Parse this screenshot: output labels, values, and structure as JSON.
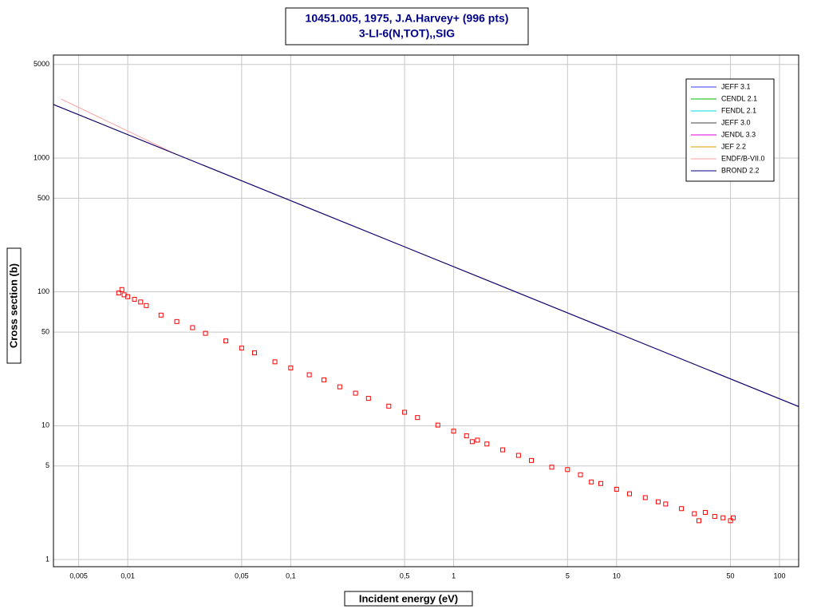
{
  "chart_data": {
    "type": "line",
    "title": "10451.005, 1975, J.A.Harvey+ (996 pts)",
    "subtitle": "3-LI-6(N,TOT),,SIG",
    "x_label": "Incident energy (eV)",
    "y_label": "Cross section (b)",
    "log_x": true,
    "log_y": true,
    "grid": true,
    "xlim": [
      0.0035,
      131
    ],
    "ylim": [
      0.884,
      5875
    ],
    "xticks": [
      {
        "value": 0.005,
        "label": "0,005"
      },
      {
        "value": 0.01,
        "label": "0,01"
      },
      {
        "value": 0.05,
        "label": "0,05"
      },
      {
        "value": 0.1,
        "label": "0,1"
      },
      {
        "value": 0.5,
        "label": "0,5"
      },
      1,
      5,
      10,
      50,
      100
    ],
    "yticks": [
      1,
      5,
      10,
      50,
      100,
      500,
      1000,
      5000
    ],
    "legend_position": "top-right",
    "series": [
      {
        "name": "JEFF 3.1",
        "color": "#3a3aff",
        "x": [
          0.0035,
          131
        ],
        "values": [
          2510,
          13.9
        ]
      },
      {
        "name": "CENDL 2.1",
        "color": "#00c000",
        "x": [
          0.0035,
          131
        ],
        "values": [
          2510,
          13.9
        ]
      },
      {
        "name": "FENDL 2.1",
        "color": "#00d8d8",
        "x": [
          0.0035,
          131
        ],
        "values": [
          2510,
          13.9
        ]
      },
      {
        "name": "JEFF 3.0",
        "color": "#404040",
        "x": [
          0.0035,
          131
        ],
        "values": [
          2510,
          13.9
        ]
      },
      {
        "name": "JENDL 3.3",
        "color": "#e000e0",
        "x": [
          0.0035,
          131
        ],
        "values": [
          2510,
          13.9
        ]
      },
      {
        "name": "JEF 2.2",
        "color": "#e0a000",
        "x": [
          0.0035,
          131
        ],
        "values": [
          2510,
          13.9
        ]
      },
      {
        "name": "ENDF/B-VII.0",
        "color": "#ff9c9c",
        "x": [
          0.0039,
          0.02,
          131
        ],
        "values": [
          2760,
          1060,
          13.9
        ]
      },
      {
        "name": "BROND 2.2",
        "color": "#000080",
        "x": [
          0.0035,
          131
        ],
        "values": [
          2510,
          13.9
        ]
      }
    ],
    "points": {
      "color": "#ff0000",
      "x": [
        0.0088,
        0.0092,
        0.0095,
        0.01,
        0.011,
        0.012,
        0.013,
        0.016,
        0.02,
        0.025,
        0.03,
        0.04,
        0.05,
        0.06,
        0.08,
        0.1,
        0.13,
        0.16,
        0.2,
        0.25,
        0.3,
        0.4,
        0.5,
        0.6,
        0.8,
        1.0,
        1.2,
        1.3,
        1.4,
        1.6,
        2,
        2.5,
        3,
        4,
        5,
        6,
        7,
        8,
        10,
        12,
        15,
        18,
        20,
        25,
        30,
        32,
        35,
        40,
        45,
        50,
        52
      ],
      "values": [
        98,
        104,
        95,
        92,
        88,
        84,
        79,
        67,
        60,
        54,
        49,
        43,
        38,
        35,
        30,
        27,
        24,
        22,
        19.5,
        17.5,
        16,
        14,
        12.6,
        11.5,
        10.1,
        9.1,
        8.4,
        7.6,
        7.8,
        7.3,
        6.6,
        6.0,
        5.5,
        4.9,
        4.7,
        4.3,
        3.8,
        3.7,
        3.35,
        3.1,
        2.9,
        2.7,
        2.6,
        2.4,
        2.2,
        1.95,
        2.25,
        2.1,
        2.05,
        1.95,
        2.05
      ]
    }
  }
}
